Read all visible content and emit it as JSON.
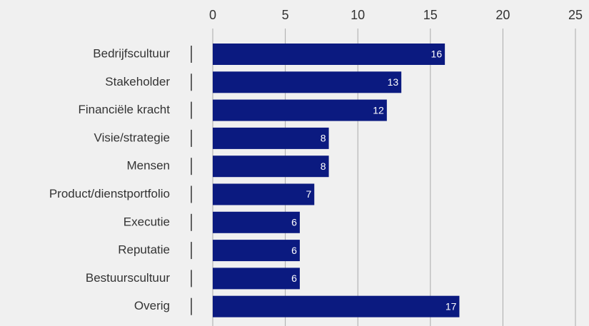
{
  "chart_data": {
    "type": "barh",
    "categories": [
      "Bedrijfscultuur",
      "Stakeholder",
      "Financiële kracht",
      "Visie/strategie",
      "Mensen",
      "Product/dienstportfolio",
      "Executie",
      "Reputatie",
      "Bestuurscultuur",
      "Overig"
    ],
    "values": [
      16,
      13,
      12,
      8,
      8,
      7,
      6,
      6,
      6,
      17
    ],
    "color": "#0b1a80",
    "xlim": [
      0,
      25
    ],
    "xticks": [
      0,
      5,
      10,
      15,
      20,
      25
    ],
    "grid": true
  }
}
